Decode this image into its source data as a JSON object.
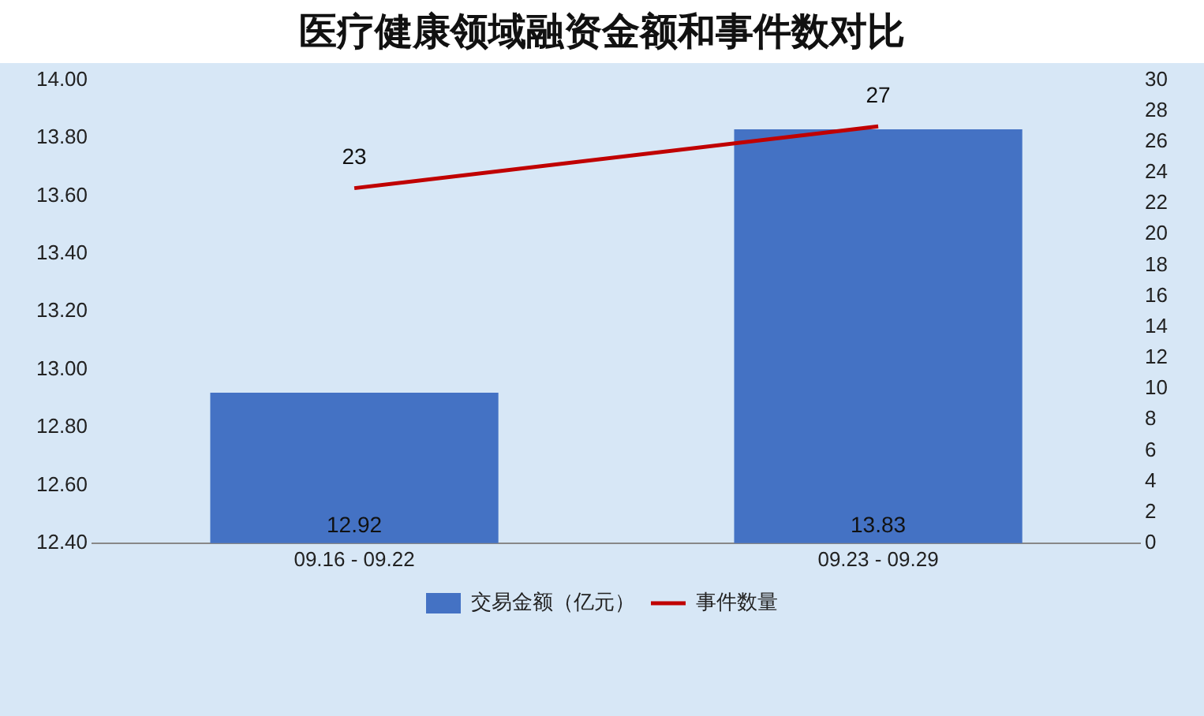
{
  "chart_data": {
    "type": "bar",
    "title": "医疗健康领域融资金额和事件数对比",
    "categories": [
      "09.16 - 09.22",
      "09.23 - 09.29"
    ],
    "series": [
      {
        "name": "交易金额（亿元）",
        "color": "#4472c4",
        "values": [
          12.92,
          13.83
        ]
      },
      {
        "name": "事件数量",
        "type": "line",
        "axis": "y2",
        "color": "#c00000",
        "values": [
          23,
          27
        ]
      }
    ],
    "ylim": [
      12.4,
      14.0
    ],
    "yticks": [
      {
        "value": 12.4,
        "label": "12.40"
      },
      {
        "value": 12.6,
        "label": "12.60"
      },
      {
        "value": 12.8,
        "label": "12.80"
      },
      {
        "value": 13.0,
        "label": "13.00"
      },
      {
        "value": 13.2,
        "label": "13.20"
      },
      {
        "value": 13.4,
        "label": "13.40"
      },
      {
        "value": 13.6,
        "label": "13.60"
      },
      {
        "value": 13.8,
        "label": "13.80"
      },
      {
        "value": 14.0,
        "label": "14.00"
      }
    ],
    "y2lim": [
      0,
      30
    ],
    "y2ticks": [
      0,
      2,
      4,
      6,
      8,
      10,
      12,
      14,
      16,
      18,
      20,
      22,
      24,
      26,
      28,
      30
    ],
    "data_labels": true,
    "grid": false,
    "legend": "bottom",
    "marker": "none"
  }
}
